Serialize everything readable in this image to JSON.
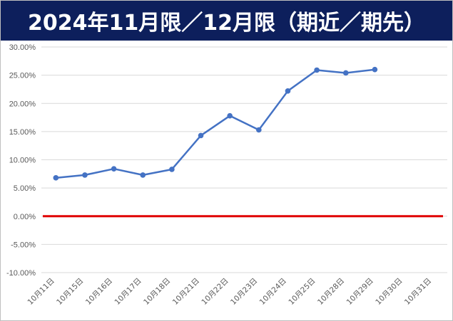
{
  "title": "2024年11月限／12月限（期近／期先）",
  "chart_data": {
    "type": "line",
    "categories": [
      "10月11日",
      "10月15日",
      "10月16日",
      "10月17日",
      "10月18日",
      "10月21日",
      "10月22日",
      "10月23日",
      "10月24日",
      "10月25日",
      "10月28日",
      "10月29日",
      "10月30日",
      "10月31日"
    ],
    "series": [
      {
        "values": [
          6.8,
          7.3,
          8.4,
          7.3,
          8.3,
          14.3,
          17.8,
          15.3,
          22.2,
          25.9,
          25.4,
          26.0,
          null,
          null
        ],
        "color": "#4472c4"
      }
    ],
    "reference_line": {
      "value": 0,
      "color": "#e00000"
    },
    "ylim": [
      -10,
      30
    ],
    "y_ticks": [
      "30.00%",
      "25.00%",
      "20.00%",
      "15.00%",
      "10.00%",
      "5.00%",
      "0.00%",
      "-5.00%",
      "-10.00%"
    ],
    "grid": true
  }
}
